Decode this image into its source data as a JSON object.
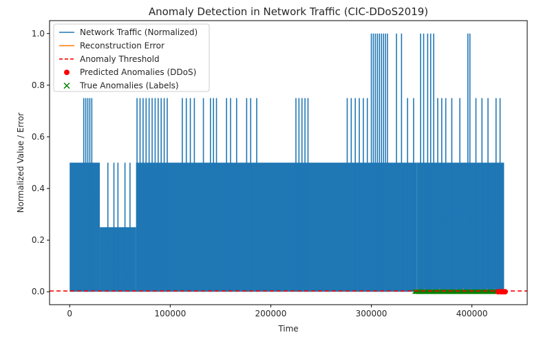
{
  "chart_data": {
    "type": "line",
    "title": "Anomaly Detection in Network Traffic (CIC-DDoS2019)",
    "xlabel": "Time",
    "ylabel": "Normalized Value / Error",
    "xlim": [
      -20000,
      455000
    ],
    "ylim": [
      -0.05,
      1.05
    ],
    "xticks": [
      0,
      100000,
      200000,
      300000,
      400000
    ],
    "xtick_labels": [
      "0",
      "100000",
      "200000",
      "300000",
      "400000"
    ],
    "yticks": [
      0.0,
      0.2,
      0.4,
      0.6,
      0.8,
      1.0
    ],
    "ytick_labels": [
      "0.0",
      "0.2",
      "0.4",
      "0.6",
      "0.8",
      "1.0"
    ],
    "grid": false,
    "legend_position": "top-left",
    "series": [
      {
        "name": "Network Traffic (Normalized)",
        "kind": "line",
        "color": "#1f77b4",
        "baseline": 0.0,
        "segments": [
          {
            "x_start": 0,
            "x_end": 30000,
            "level": 0.5
          },
          {
            "x_start": 30000,
            "x_end": 66000,
            "level": 0.25
          },
          {
            "x_start": 66000,
            "x_end": 345000,
            "level": 0.5
          },
          {
            "x_start": 345000,
            "x_end": 432000,
            "level": 0.5
          }
        ],
        "peaks": [
          {
            "x": 14000,
            "y": 0.75
          },
          {
            "x": 16000,
            "y": 0.75
          },
          {
            "x": 18000,
            "y": 0.75
          },
          {
            "x": 20000,
            "y": 0.75
          },
          {
            "x": 22000,
            "y": 0.75
          },
          {
            "x": 38000,
            "y": 0.5
          },
          {
            "x": 44000,
            "y": 0.5
          },
          {
            "x": 48000,
            "y": 0.5
          },
          {
            "x": 55000,
            "y": 0.5
          },
          {
            "x": 60000,
            "y": 0.5
          },
          {
            "x": 67000,
            "y": 0.75
          },
          {
            "x": 70000,
            "y": 0.75
          },
          {
            "x": 73000,
            "y": 0.75
          },
          {
            "x": 76000,
            "y": 0.75
          },
          {
            "x": 79000,
            "y": 0.75
          },
          {
            "x": 82000,
            "y": 0.75
          },
          {
            "x": 85000,
            "y": 0.75
          },
          {
            "x": 88000,
            "y": 0.75
          },
          {
            "x": 91000,
            "y": 0.75
          },
          {
            "x": 94000,
            "y": 0.75
          },
          {
            "x": 97000,
            "y": 0.75
          },
          {
            "x": 112000,
            "y": 0.75
          },
          {
            "x": 116000,
            "y": 0.75
          },
          {
            "x": 120000,
            "y": 0.75
          },
          {
            "x": 124000,
            "y": 0.75
          },
          {
            "x": 133000,
            "y": 0.75
          },
          {
            "x": 140000,
            "y": 0.75
          },
          {
            "x": 143000,
            "y": 0.75
          },
          {
            "x": 146000,
            "y": 0.75
          },
          {
            "x": 156000,
            "y": 0.75
          },
          {
            "x": 160000,
            "y": 0.75
          },
          {
            "x": 166000,
            "y": 0.75
          },
          {
            "x": 176000,
            "y": 0.75
          },
          {
            "x": 180000,
            "y": 0.75
          },
          {
            "x": 186000,
            "y": 0.75
          },
          {
            "x": 225000,
            "y": 0.75
          },
          {
            "x": 228000,
            "y": 0.75
          },
          {
            "x": 231000,
            "y": 0.75
          },
          {
            "x": 234000,
            "y": 0.75
          },
          {
            "x": 237000,
            "y": 0.75
          },
          {
            "x": 276000,
            "y": 0.75
          },
          {
            "x": 280000,
            "y": 0.75
          },
          {
            "x": 284000,
            "y": 0.75
          },
          {
            "x": 288000,
            "y": 0.75
          },
          {
            "x": 292000,
            "y": 0.75
          },
          {
            "x": 296000,
            "y": 0.75
          },
          {
            "x": 300000,
            "y": 1.0
          },
          {
            "x": 302000,
            "y": 1.0
          },
          {
            "x": 304000,
            "y": 1.0
          },
          {
            "x": 306000,
            "y": 1.0
          },
          {
            "x": 308000,
            "y": 1.0
          },
          {
            "x": 310000,
            "y": 1.0
          },
          {
            "x": 312000,
            "y": 1.0
          },
          {
            "x": 314000,
            "y": 1.0
          },
          {
            "x": 316000,
            "y": 1.0
          },
          {
            "x": 325000,
            "y": 1.0
          },
          {
            "x": 330000,
            "y": 1.0
          },
          {
            "x": 336000,
            "y": 0.75
          },
          {
            "x": 342000,
            "y": 0.75
          },
          {
            "x": 349000,
            "y": 1.0
          },
          {
            "x": 352000,
            "y": 1.0
          },
          {
            "x": 356000,
            "y": 1.0
          },
          {
            "x": 359000,
            "y": 1.0
          },
          {
            "x": 362000,
            "y": 1.0
          },
          {
            "x": 366000,
            "y": 0.75
          },
          {
            "x": 370000,
            "y": 0.75
          },
          {
            "x": 374000,
            "y": 0.75
          },
          {
            "x": 380000,
            "y": 0.75
          },
          {
            "x": 388000,
            "y": 0.75
          },
          {
            "x": 396000,
            "y": 1.0
          },
          {
            "x": 398000,
            "y": 1.0
          },
          {
            "x": 404000,
            "y": 0.75
          },
          {
            "x": 410000,
            "y": 0.75
          },
          {
            "x": 416000,
            "y": 0.75
          },
          {
            "x": 424000,
            "y": 0.75
          },
          {
            "x": 428000,
            "y": 0.75
          }
        ],
        "dips": [
          {
            "x": 26000,
            "y": 0.35
          },
          {
            "x": 38000,
            "y": 0.17
          },
          {
            "x": 44000,
            "y": 0.18
          },
          {
            "x": 50000,
            "y": 0.08
          },
          {
            "x": 55000,
            "y": 0.1
          },
          {
            "x": 58000,
            "y": 0.06
          },
          {
            "x": 62000,
            "y": 0.04
          },
          {
            "x": 226000,
            "y": 0.26
          },
          {
            "x": 262000,
            "y": 0.42
          },
          {
            "x": 292000,
            "y": 0.42
          },
          {
            "x": 355000,
            "y": 0.35
          },
          {
            "x": 360000,
            "y": 0.32
          },
          {
            "x": 366000,
            "y": 0.3
          },
          {
            "x": 372000,
            "y": 0.28
          },
          {
            "x": 380000,
            "y": 0.3
          },
          {
            "x": 386000,
            "y": 0.26
          },
          {
            "x": 392000,
            "y": 0.29
          },
          {
            "x": 400000,
            "y": 0.26
          },
          {
            "x": 410000,
            "y": 0.3
          },
          {
            "x": 420000,
            "y": 0.27
          }
        ]
      },
      {
        "name": "Reconstruction Error",
        "kind": "line",
        "color": "#ff7f0e",
        "x_start": 343000,
        "x_end": 432000,
        "y_range": [
          0.0,
          0.01
        ]
      },
      {
        "name": "Anomaly Threshold",
        "kind": "hline",
        "color": "#ff0000",
        "linestyle": "dashed",
        "value": 0.003
      },
      {
        "name": "Predicted Anomalies (DDoS)",
        "kind": "scatter",
        "marker": "circle",
        "color": "#ff0000",
        "points": [
          {
            "x": 426000,
            "y": 0.0
          },
          {
            "x": 429000,
            "y": 0.0
          },
          {
            "x": 431000,
            "y": 0.0
          },
          {
            "x": 433000,
            "y": 0.0
          }
        ]
      },
      {
        "name": "True Anomalies (Labels)",
        "kind": "scatter",
        "marker": "x",
        "color": "#008000",
        "x_start": 343000,
        "x_end": 425000,
        "y": 0.0
      }
    ]
  }
}
